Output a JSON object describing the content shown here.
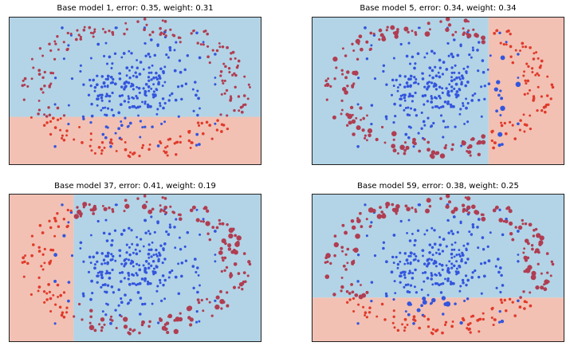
{
  "figure": {
    "background": "#ffffff",
    "class_colors": {
      "blue": "#3355dd",
      "red": "#e03a2a",
      "mixed": "#b03d52"
    },
    "region_colors": {
      "blue": "#b3d4e6",
      "red": "#f2c1b4"
    }
  },
  "chart_data": [
    {
      "type": "scatter",
      "title": "Base model 1, error: 0.35, weight: 0.31",
      "xlim": [
        -1.5,
        1.5
      ],
      "ylim": [
        -1.0,
        1.0
      ],
      "axes_visible": false,
      "grid": false,
      "decision_stump": {
        "feature": "y",
        "threshold": -0.35,
        "below": "red",
        "above": "blue"
      }
    },
    {
      "type": "scatter",
      "title": "Base model 5, error: 0.34, weight: 0.34",
      "xlim": [
        -1.5,
        1.5
      ],
      "ylim": [
        -1.0,
        1.0
      ],
      "axes_visible": false,
      "grid": false,
      "decision_stump": {
        "feature": "x",
        "threshold": 0.6,
        "below": "blue",
        "above": "red"
      }
    },
    {
      "type": "scatter",
      "title": "Base model 37, error: 0.41, weight: 0.19",
      "xlim": [
        -1.5,
        1.5
      ],
      "ylim": [
        -1.0,
        1.0
      ],
      "axes_visible": false,
      "grid": false,
      "decision_stump": {
        "feature": "x",
        "threshold": -0.73,
        "below": "red",
        "above": "blue"
      }
    },
    {
      "type": "scatter",
      "title": "Base model 59, error: 0.38, weight: 0.25",
      "xlim": [
        -1.5,
        1.5
      ],
      "ylim": [
        -1.0,
        1.0
      ],
      "axes_visible": false,
      "grid": false,
      "decision_stump": {
        "feature": "y",
        "threshold": -0.4,
        "below": "red",
        "above": "blue"
      }
    }
  ]
}
